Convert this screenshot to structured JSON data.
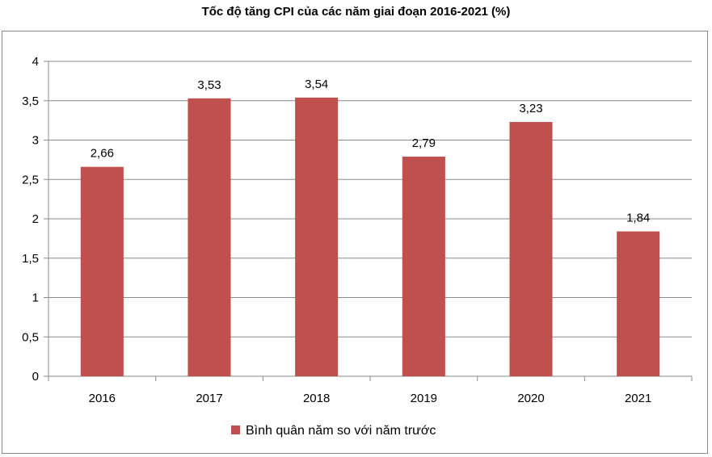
{
  "chart_data": {
    "type": "bar",
    "title": "Tốc độ tăng CPI của các năm giai đoạn 2016-2021 (%)",
    "categories": [
      "2016",
      "2017",
      "2018",
      "2019",
      "2020",
      "2021"
    ],
    "series": [
      {
        "name": "Bình quân năm so với năm trước",
        "values": [
          2.66,
          3.53,
          3.54,
          2.79,
          3.23,
          1.84
        ],
        "labels": [
          "2,66",
          "3,53",
          "3,54",
          "2,79",
          "3,23",
          "1,84"
        ],
        "color": "#c0504d"
      }
    ],
    "ylim": [
      0,
      4
    ],
    "yticks": [
      0,
      0.5,
      1,
      1.5,
      2,
      2.5,
      3,
      3.5,
      4
    ],
    "ytick_labels": [
      "0",
      "0,5",
      "1",
      "1,5",
      "2",
      "2,5",
      "3",
      "3,5",
      "4"
    ],
    "grid": true,
    "legend_position": "bottom",
    "gridline_color": "#8a8a8a"
  }
}
